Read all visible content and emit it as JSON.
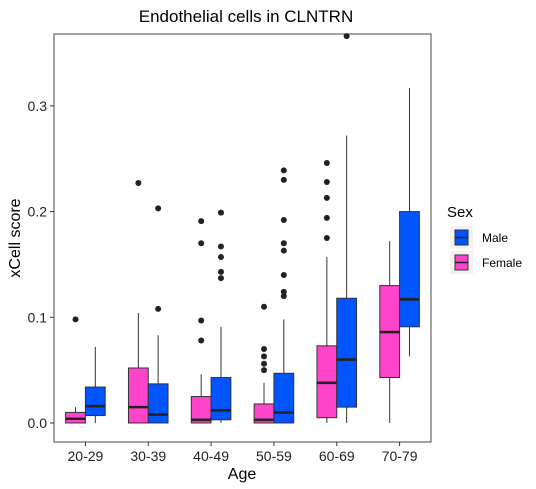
{
  "chart_data": {
    "type": "boxplot",
    "title": "Endothelial cells in CLNTRN",
    "xlabel": "Age",
    "ylabel": "xCell score",
    "categories": [
      "20-29",
      "30-39",
      "40-49",
      "50-59",
      "60-69",
      "70-79"
    ],
    "ylim": [
      -0.018,
      0.368
    ],
    "yticks": [
      0.0,
      0.1,
      0.2,
      0.3
    ],
    "ytick_labels": [
      "0.0",
      "0.1",
      "0.2",
      "0.3"
    ],
    "grid": false,
    "legend": {
      "title": "Sex",
      "placement": "right"
    },
    "series": [
      {
        "name": "Female",
        "color": "#ff44cc",
        "boxes": [
          {
            "category": "20-29",
            "min": 0.0,
            "q1": 0.0,
            "median": 0.004,
            "q3": 0.01,
            "max": 0.015,
            "outliers": [
              0.098
            ]
          },
          {
            "category": "30-39",
            "min": 0.0,
            "q1": 0.0,
            "median": 0.015,
            "q3": 0.052,
            "max": 0.104,
            "outliers": [
              0.227
            ]
          },
          {
            "category": "40-49",
            "min": 0.0,
            "q1": 0.0,
            "median": 0.003,
            "q3": 0.025,
            "max": 0.046,
            "outliers": [
              0.078,
              0.097,
              0.17,
              0.191
            ]
          },
          {
            "category": "50-59",
            "min": 0.0,
            "q1": 0.0,
            "median": 0.003,
            "q3": 0.018,
            "max": 0.038,
            "outliers": [
              0.05,
              0.056,
              0.063,
              0.07,
              0.11
            ]
          },
          {
            "category": "60-69",
            "min": 0.0,
            "q1": 0.005,
            "median": 0.038,
            "q3": 0.073,
            "max": 0.157,
            "outliers": [
              0.175,
              0.194,
              0.213,
              0.228,
              0.246
            ]
          },
          {
            "category": "70-79",
            "min": 0.0,
            "q1": 0.043,
            "median": 0.086,
            "q3": 0.13,
            "max": 0.172,
            "outliers": []
          }
        ]
      },
      {
        "name": "Male",
        "color": "#0055ff",
        "boxes": [
          {
            "category": "20-29",
            "min": 0.0,
            "q1": 0.007,
            "median": 0.016,
            "q3": 0.034,
            "max": 0.072,
            "outliers": []
          },
          {
            "category": "30-39",
            "min": 0.0,
            "q1": 0.0,
            "median": 0.008,
            "q3": 0.037,
            "max": 0.083,
            "outliers": [
              0.108,
              0.203
            ]
          },
          {
            "category": "40-49",
            "min": 0.0,
            "q1": 0.003,
            "median": 0.012,
            "q3": 0.043,
            "max": 0.091,
            "outliers": [
              0.137,
              0.143,
              0.157,
              0.167,
              0.199
            ]
          },
          {
            "category": "50-59",
            "min": 0.0,
            "q1": 0.0,
            "median": 0.01,
            "q3": 0.047,
            "max": 0.098,
            "outliers": [
              0.12,
              0.124,
              0.14,
              0.163,
              0.17,
              0.192,
              0.23,
              0.239
            ]
          },
          {
            "category": "60-69",
            "min": 0.0,
            "q1": 0.015,
            "median": 0.06,
            "q3": 0.118,
            "max": 0.272,
            "outliers": [
              0.366
            ]
          },
          {
            "category": "70-79",
            "min": 0.063,
            "q1": 0.091,
            "median": 0.117,
            "q3": 0.2,
            "max": 0.317,
            "outliers": []
          }
        ]
      }
    ]
  }
}
